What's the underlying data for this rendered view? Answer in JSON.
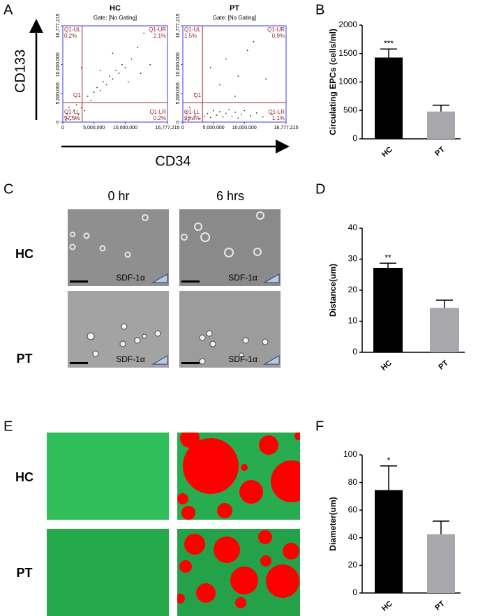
{
  "panel_labels": [
    "A",
    "B",
    "C",
    "D",
    "E",
    "F"
  ],
  "flow": {
    "x_label": "CD34",
    "y_label": "CD133"
  },
  "migration": {
    "columns": [
      "0 hr",
      "6 hrs"
    ],
    "rows": [
      "HC",
      "PT"
    ],
    "stimulus": "SDF-1α"
  },
  "tube": {
    "rows": [
      "HC",
      "PT"
    ]
  },
  "chart_data": [
    {
      "type": "scatter",
      "title": "HC",
      "subtitle": "Gate: [No Gating]",
      "xlim": [
        0,
        16777215
      ],
      "ylim": [
        0,
        16777215
      ],
      "xticks": [
        0,
        {
          "value": 5000000,
          "label": "5,000,000"
        },
        {
          "value": 10000000,
          "label": "10,000,000"
        },
        {
          "value": 16777215,
          "label": "16,777,215"
        }
      ],
      "yticks": [
        0,
        {
          "value": 5000000,
          "label": "5,000,000"
        },
        {
          "value": 10000000,
          "label": "10,000,000"
        },
        {
          "value": 16777215,
          "label": "16,777,215"
        }
      ],
      "gate": [
        3100000,
        3400000
      ],
      "gate_name": "Q1",
      "quadrants": {
        "ul": "Q1-UL",
        "ul_pct": "0.2%",
        "ur": "Q1-UR",
        "ur_pct": "2.1%",
        "ll": "Q1-LL",
        "ll_pct": "97.5%",
        "lr": "Q1-LR",
        "lr_pct": "0.2%"
      },
      "x": [
        500000,
        800000,
        1200000,
        1500000,
        2000000,
        700000,
        2500000,
        1800000,
        3000000,
        2200000,
        400000,
        1000000,
        3500000,
        4000000,
        4500000,
        5000000,
        5500000,
        6000000,
        6500000,
        7000000,
        7500000,
        8000000,
        8500000,
        9000000,
        9500000,
        10000000,
        11000000,
        12000000,
        6000000,
        13000000,
        3000000,
        8000000,
        10500000,
        12500000,
        14000000
      ],
      "y": [
        300000,
        600000,
        400000,
        900000,
        700000,
        1500000,
        1300000,
        2000000,
        2500000,
        3000000,
        1000000,
        2500000,
        2000000,
        4500000,
        3800000,
        5200000,
        6000000,
        5500000,
        7000000,
        6500000,
        8000000,
        7500000,
        9000000,
        8500000,
        10000000,
        9500000,
        11000000,
        13000000,
        9000000,
        15500000,
        9500000,
        12000000,
        7000000,
        8500000,
        10000000
      ]
    },
    {
      "type": "scatter",
      "title": "PT",
      "subtitle": "Gate: [No Gating]",
      "xlim": [
        0,
        16777215
      ],
      "ylim": [
        0,
        16777215
      ],
      "xticks": [
        0,
        {
          "value": 5000000,
          "label": "5,000,000"
        },
        {
          "value": 10000000,
          "label": "10,000,000"
        },
        {
          "value": 16777215,
          "label": "16,777,215"
        }
      ],
      "yticks": [
        0,
        {
          "value": 5000000,
          "label": "5,000,000"
        },
        {
          "value": 10000000,
          "label": "10,000,000"
        },
        {
          "value": 16777215,
          "label": "16,777,215"
        }
      ],
      "gate": [
        3200000,
        3400000
      ],
      "gate_name": "Q1",
      "quadrants": {
        "ul": "Q1-UL",
        "ul_pct": "1.5%",
        "ur": "Q1-UR",
        "ur_pct": "0.9%",
        "ll": "Q1-LL",
        "ll_pct": "96.4%",
        "lr": "Q1-LR",
        "lr_pct": "1.1%"
      },
      "x": [
        400000,
        900000,
        1300000,
        1600000,
        2000000,
        600000,
        2800000,
        1100000,
        3500000,
        4000000,
        4500000,
        5000000,
        5500000,
        6000000,
        6500000,
        7000000,
        7500000,
        8000000,
        8500000,
        9000000,
        9500000,
        10000000,
        11000000,
        12000000,
        13000000,
        14500000,
        6000000,
        7000000,
        9000000,
        11500000,
        8500000,
        4500000,
        13500000,
        10500000,
        2000000
      ],
      "y": [
        400000,
        300000,
        800000,
        500000,
        1200000,
        1800000,
        600000,
        2600000,
        1000000,
        1500000,
        800000,
        2000000,
        1200000,
        1800000,
        900000,
        1500000,
        2200000,
        1000000,
        1700000,
        700000,
        1400000,
        2000000,
        1100000,
        1600000,
        900000,
        1300000,
        6500000,
        11000000,
        8000000,
        14000000,
        4500000,
        9500000,
        7500000,
        12500000,
        5000000
      ]
    },
    {
      "type": "bar",
      "y_label": "Circulating EPCs (cells/ml)",
      "categories": [
        "HC",
        "PT"
      ],
      "values": [
        1430,
        480
      ],
      "errors": [
        150,
        110
      ],
      "colors": [
        "#000000",
        "#a7a7ac"
      ],
      "significance": [
        "***",
        null
      ],
      "ylim": [
        0,
        2000
      ],
      "yticks": [
        0,
        500,
        1000,
        1500,
        2000
      ]
    },
    {
      "type": "bar",
      "y_label": "Distance(um)",
      "categories": [
        "HC",
        "PT"
      ],
      "values": [
        27.2,
        14.3
      ],
      "errors": [
        1.5,
        2.5
      ],
      "colors": [
        "#000000",
        "#a7a7ac"
      ],
      "significance": [
        "**",
        null
      ],
      "ylim": [
        0,
        40
      ],
      "yticks": [
        0,
        10,
        20,
        30,
        40
      ]
    },
    {
      "type": "bar",
      "y_label": "Diameter(um)",
      "categories": [
        "HC",
        "PT"
      ],
      "values": [
        74.5,
        42.5
      ],
      "errors": [
        17.5,
        9.5
      ],
      "colors": [
        "#000000",
        "#a7a7ac"
      ],
      "significance": [
        "*",
        null
      ],
      "ylim": [
        0,
        100
      ],
      "yticks": [
        0,
        20,
        40,
        60,
        80,
        100
      ]
    }
  ]
}
